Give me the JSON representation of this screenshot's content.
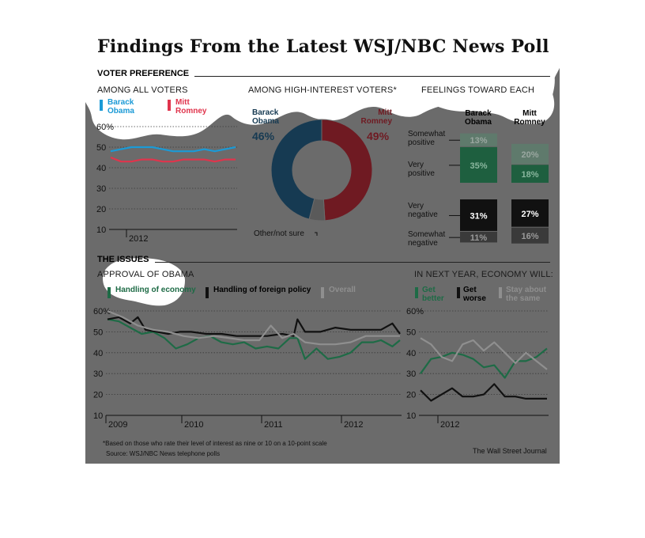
{
  "title": "Findings From the Latest WSJ/NBC News Poll",
  "voter_preference_heading": "VOTER PREFERENCE",
  "issues_heading": "THE ISSUES",
  "colors": {
    "panel": "#6b6b6b",
    "obama": "#1b9ad6",
    "romney": "#e0344c",
    "green": "#1e6b46",
    "black": "#111111",
    "gray": "#8f8f8f"
  },
  "all_voters": {
    "subtitle": "AMONG ALL VOTERS",
    "legend": [
      {
        "label": "Barack\nObama",
        "color": "#1b9ad6"
      },
      {
        "label": "Mitt\nRomney",
        "color": "#e0344c"
      }
    ]
  },
  "high_interest": {
    "subtitle": "AMONG HIGH-INTEREST VOTERS*",
    "obama_label": "Barack\nObama",
    "obama_value": "46%",
    "romney_label": "Mitt\nRomney",
    "romney_value": "49%",
    "other_label": "Other/not sure"
  },
  "feelings": {
    "subtitle": "FEELINGS TOWARD EACH",
    "col_obama": "Barack\nObama",
    "col_romney": "Mitt\nRomney"
  },
  "approval": {
    "subtitle": "APPROVAL OF OBAMA",
    "legend": [
      {
        "label": "Handling of economy",
        "color": "#1e6b46"
      },
      {
        "label": "Handling of foreign policy",
        "color": "#111111"
      },
      {
        "label": "Overall",
        "color": "#8f8f8f"
      }
    ]
  },
  "economy": {
    "subtitle": "IN NEXT YEAR, ECONOMY WILL:",
    "legend": [
      {
        "label": "Get\nbetter",
        "color": "#1e6b46"
      },
      {
        "label": "Get\nworse",
        "color": "#111111"
      },
      {
        "label": "Stay about\nthe same",
        "color": "#8f8f8f"
      }
    ]
  },
  "footnote": "*Based on those who rate their level of interest as nine or 10 on a 10-point scale",
  "source": "Source: WSJ/NBC News telephone polls",
  "credit": "The Wall Street Journal",
  "chart_data": [
    {
      "type": "line",
      "ylim": [
        10,
        60
      ],
      "y_ticks": [
        "60%",
        "50",
        "40",
        "30",
        "20",
        "10"
      ],
      "x_tick_labels": [
        "2012"
      ],
      "grid": "dotted horizontal",
      "series": [
        {
          "name": "Barack Obama",
          "color": "#1b9ad6",
          "x": [
            0,
            1,
            2,
            3,
            4,
            5,
            6,
            7,
            8,
            9,
            10,
            11,
            12
          ],
          "values": [
            48,
            49,
            50,
            50,
            50,
            49,
            48,
            48,
            48,
            49,
            48,
            49,
            50
          ]
        },
        {
          "name": "Mitt Romney",
          "color": "#e0344c",
          "x": [
            0,
            1,
            2,
            3,
            4,
            5,
            6,
            7,
            8,
            9,
            10,
            11,
            12
          ],
          "values": [
            45,
            43,
            43,
            44,
            44,
            43,
            43,
            44,
            44,
            44,
            43,
            44,
            44
          ]
        }
      ]
    },
    {
      "type": "pie",
      "style": "donut",
      "slices": [
        {
          "label": "Mitt Romney",
          "value": 49,
          "color": "#6f1a22"
        },
        {
          "label": "Other/not sure",
          "value": 5,
          "color": "#5a5a5a"
        },
        {
          "label": "Barack Obama",
          "value": 46,
          "color": "#163a52"
        }
      ]
    },
    {
      "type": "bar",
      "orientation": "stacked-vertical",
      "categories": [
        "Somewhat positive",
        "Very positive",
        "Very negative",
        "Somewhat negative"
      ],
      "series": [
        {
          "name": "Barack Obama",
          "values": [
            13,
            35,
            31,
            11
          ],
          "colors": [
            "#5f7a6c",
            "#1e5f3f",
            "#111111",
            "#3a3a3a"
          ]
        },
        {
          "name": "Mitt Romney",
          "values": [
            20,
            18,
            27,
            16
          ],
          "colors": [
            "#5f7a6c",
            "#1e5f3f",
            "#111111",
            "#3a3a3a"
          ]
        }
      ],
      "labels": {
        "obama": [
          "13%",
          "35%",
          "31%",
          "11%"
        ],
        "romney": [
          "20%",
          "18%",
          "27%",
          "16%"
        ]
      }
    },
    {
      "type": "line",
      "ylim": [
        10,
        60
      ],
      "y_ticks": [
        "60%",
        "50",
        "40",
        "30",
        "20",
        "10"
      ],
      "x_tick_labels": [
        "2009",
        "2010",
        "2011",
        "2012"
      ],
      "x_ticks": [
        2009,
        2010,
        2011,
        2012
      ],
      "xlim": [
        2009.0,
        2012.85
      ],
      "series": [
        {
          "name": "Handling of economy",
          "color": "#1e6b46",
          "x": [
            2009.0,
            2009.15,
            2009.3,
            2009.45,
            2009.6,
            2009.75,
            2009.9,
            2010.05,
            2010.2,
            2010.35,
            2010.5,
            2010.65,
            2010.8,
            2010.95,
            2011.1,
            2011.25,
            2011.4,
            2011.5,
            2011.6,
            2011.75,
            2011.9,
            2012.05,
            2012.2,
            2012.35,
            2012.5,
            2012.6,
            2012.75,
            2012.85
          ],
          "values": [
            56,
            55,
            52,
            49,
            50,
            47,
            42,
            44,
            47,
            48,
            45,
            44,
            45,
            42,
            43,
            42,
            47,
            47,
            37,
            42,
            37,
            38,
            40,
            45,
            45,
            46,
            43,
            46
          ]
        },
        {
          "name": "Handling of foreign policy",
          "color": "#111111",
          "x": [
            2009.0,
            2009.15,
            2009.3,
            2009.4,
            2009.5,
            2009.65,
            2009.8,
            2009.95,
            2010.1,
            2010.3,
            2010.5,
            2010.7,
            2010.9,
            2011.1,
            2011.3,
            2011.45,
            2011.5,
            2011.6,
            2011.8,
            2012.0,
            2012.2,
            2012.4,
            2012.6,
            2012.75,
            2012.85
          ],
          "values": [
            56,
            57,
            54,
            57,
            51,
            50,
            49,
            50,
            50,
            49,
            49,
            48,
            48,
            48,
            49,
            48,
            56,
            50,
            50,
            52,
            51,
            51,
            51,
            54,
            49
          ]
        },
        {
          "name": "Overall",
          "color": "#8f8f8f",
          "x": [
            2009.0,
            2009.2,
            2009.4,
            2009.6,
            2009.8,
            2010.0,
            2010.2,
            2010.4,
            2010.6,
            2010.8,
            2011.0,
            2011.15,
            2011.3,
            2011.45,
            2011.6,
            2011.8,
            2012.0,
            2012.2,
            2012.4,
            2012.6,
            2012.85
          ],
          "values": [
            60,
            57,
            53,
            51,
            50,
            48,
            47,
            48,
            47,
            46,
            46,
            53,
            47,
            49,
            45,
            44,
            44,
            45,
            48,
            48,
            48
          ]
        }
      ]
    },
    {
      "type": "line",
      "ylim": [
        10,
        60
      ],
      "y_ticks": [
        "60%",
        "50",
        "40",
        "30",
        "20",
        "10"
      ],
      "x_tick_labels": [
        "2012"
      ],
      "series": [
        {
          "name": "Get better",
          "color": "#1e6b46",
          "x": [
            0,
            1,
            2,
            3,
            4,
            5,
            6,
            7,
            8,
            9,
            10,
            11,
            12
          ],
          "values": [
            30,
            37,
            38,
            40,
            39,
            37,
            33,
            34,
            28,
            36,
            36,
            38,
            42
          ]
        },
        {
          "name": "Get worse",
          "color": "#111111",
          "x": [
            0,
            1,
            2,
            3,
            4,
            5,
            6,
            7,
            8,
            9,
            10,
            11,
            12
          ],
          "values": [
            22,
            17,
            20,
            23,
            19,
            19,
            20,
            25,
            19,
            19,
            18,
            18,
            18
          ]
        },
        {
          "name": "Stay about the same",
          "color": "#8f8f8f",
          "x": [
            0,
            1,
            2,
            3,
            4,
            5,
            6,
            7,
            8,
            9,
            10,
            11,
            12
          ],
          "values": [
            47,
            44,
            38,
            36,
            44,
            46,
            41,
            45,
            40,
            35,
            40,
            36,
            32
          ]
        }
      ]
    }
  ]
}
